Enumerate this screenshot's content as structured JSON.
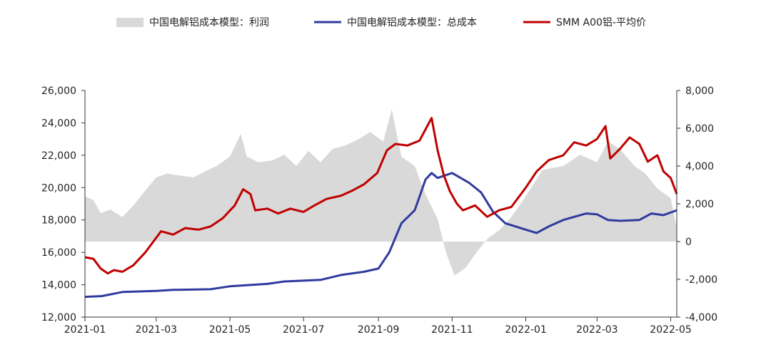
{
  "chart_data": {
    "type": "line",
    "title": "",
    "legend_placement": "top-center",
    "grid": false,
    "x_ticks": [
      "2021-01",
      "2021-03",
      "2021-05",
      "2021-07",
      "2021-09",
      "2021-11",
      "2022-01",
      "2022-03",
      "2022-05"
    ],
    "y_left": {
      "range": [
        12000,
        26000
      ],
      "ticks": [
        "12,000",
        "14,000",
        "16,000",
        "18,000",
        "20,000",
        "22,000",
        "24,000",
        "26,000"
      ]
    },
    "y_right": {
      "range": [
        -4000,
        8000
      ],
      "ticks": [
        "-4,000",
        "-2,000",
        "0",
        "2,000",
        "4,000",
        "6,000",
        "8,000"
      ]
    },
    "series": [
      {
        "name": "中国电解铝成本模型：利润",
        "kind": "area",
        "axis": "right",
        "color": "#d9d9d9",
        "points": [
          [
            "2021-01-01",
            2400
          ],
          [
            "2021-01-08",
            2200
          ],
          [
            "2021-01-14",
            1500
          ],
          [
            "2021-01-22",
            1700
          ],
          [
            "2021-02-01",
            1300
          ],
          [
            "2021-02-10",
            1900
          ],
          [
            "2021-02-20",
            2700
          ],
          [
            "2021-03-01",
            3400
          ],
          [
            "2021-03-10",
            3600
          ],
          [
            "2021-03-20",
            3500
          ],
          [
            "2021-04-01",
            3400
          ],
          [
            "2021-04-10",
            3700
          ],
          [
            "2021-04-20",
            4000
          ],
          [
            "2021-05-01",
            4500
          ],
          [
            "2021-05-10",
            5700
          ],
          [
            "2021-05-15",
            4500
          ],
          [
            "2021-05-25",
            4200
          ],
          [
            "2021-06-05",
            4300
          ],
          [
            "2021-06-15",
            4600
          ],
          [
            "2021-06-25",
            4000
          ],
          [
            "2021-07-05",
            4800
          ],
          [
            "2021-07-15",
            4200
          ],
          [
            "2021-07-25",
            4900
          ],
          [
            "2021-08-05",
            5100
          ],
          [
            "2021-08-15",
            5400
          ],
          [
            "2021-08-25",
            5800
          ],
          [
            "2021-09-05",
            5300
          ],
          [
            "2021-09-12",
            7000
          ],
          [
            "2021-09-20",
            4500
          ],
          [
            "2021-10-01",
            4000
          ],
          [
            "2021-10-10",
            2500
          ],
          [
            "2021-10-20",
            1200
          ],
          [
            "2021-10-27",
            -600
          ],
          [
            "2021-11-03",
            -1800
          ],
          [
            "2021-11-12",
            -1400
          ],
          [
            "2021-11-22",
            -500
          ],
          [
            "2021-12-01",
            200
          ],
          [
            "2021-12-10",
            600
          ],
          [
            "2021-12-20",
            1300
          ],
          [
            "2022-01-01",
            2400
          ],
          [
            "2022-01-15",
            3800
          ],
          [
            "2022-02-01",
            4000
          ],
          [
            "2022-02-15",
            4600
          ],
          [
            "2022-03-01",
            4200
          ],
          [
            "2022-03-10",
            5300
          ],
          [
            "2022-03-20",
            4900
          ],
          [
            "2022-04-01",
            4000
          ],
          [
            "2022-04-10",
            3600
          ],
          [
            "2022-04-20",
            2800
          ],
          [
            "2022-05-01",
            2300
          ],
          [
            "2022-05-06",
            700
          ]
        ]
      },
      {
        "name": "中国电解铝成本模型：总成本",
        "kind": "line",
        "axis": "left",
        "color": "#2f3a9e",
        "points": [
          [
            "2021-01-01",
            13250
          ],
          [
            "2021-01-15",
            13300
          ],
          [
            "2021-02-01",
            13550
          ],
          [
            "2021-03-01",
            13620
          ],
          [
            "2021-03-15",
            13680
          ],
          [
            "2021-04-15",
            13720
          ],
          [
            "2021-05-01",
            13900
          ],
          [
            "2021-06-01",
            14050
          ],
          [
            "2021-06-15",
            14200
          ],
          [
            "2021-07-15",
            14300
          ],
          [
            "2021-08-01",
            14600
          ],
          [
            "2021-08-20",
            14800
          ],
          [
            "2021-09-01",
            15000
          ],
          [
            "2021-09-10",
            16000
          ],
          [
            "2021-09-20",
            17800
          ],
          [
            "2021-10-01",
            18600
          ],
          [
            "2021-10-10",
            20500
          ],
          [
            "2021-10-15",
            20900
          ],
          [
            "2021-10-20",
            20600
          ],
          [
            "2021-11-01",
            20900
          ],
          [
            "2021-11-15",
            20300
          ],
          [
            "2021-11-25",
            19700
          ],
          [
            "2021-12-05",
            18500
          ],
          [
            "2021-12-15",
            17800
          ],
          [
            "2022-01-01",
            17400
          ],
          [
            "2022-01-10",
            17200
          ],
          [
            "2022-01-20",
            17600
          ],
          [
            "2022-02-01",
            18000
          ],
          [
            "2022-02-20",
            18400
          ],
          [
            "2022-03-01",
            18350
          ],
          [
            "2022-03-10",
            18000
          ],
          [
            "2022-03-20",
            17950
          ],
          [
            "2022-04-05",
            18000
          ],
          [
            "2022-04-15",
            18400
          ],
          [
            "2022-04-25",
            18300
          ],
          [
            "2022-05-06",
            18600
          ]
        ]
      },
      {
        "name": "SMM A00铝-平均价",
        "kind": "line",
        "axis": "left",
        "color": "#c00000",
        "points": [
          [
            "2021-01-01",
            15700
          ],
          [
            "2021-01-08",
            15600
          ],
          [
            "2021-01-14",
            15000
          ],
          [
            "2021-01-20",
            14700
          ],
          [
            "2021-01-25",
            14900
          ],
          [
            "2021-02-01",
            14800
          ],
          [
            "2021-02-10",
            15200
          ],
          [
            "2021-02-20",
            16000
          ],
          [
            "2021-02-28",
            16800
          ],
          [
            "2021-03-05",
            17300
          ],
          [
            "2021-03-15",
            17100
          ],
          [
            "2021-03-25",
            17500
          ],
          [
            "2021-04-05",
            17400
          ],
          [
            "2021-04-15",
            17600
          ],
          [
            "2021-04-25",
            18100
          ],
          [
            "2021-05-05",
            18900
          ],
          [
            "2021-05-12",
            19900
          ],
          [
            "2021-05-18",
            19600
          ],
          [
            "2021-05-22",
            18600
          ],
          [
            "2021-06-01",
            18700
          ],
          [
            "2021-06-10",
            18400
          ],
          [
            "2021-06-20",
            18700
          ],
          [
            "2021-07-01",
            18500
          ],
          [
            "2021-07-10",
            18900
          ],
          [
            "2021-07-20",
            19300
          ],
          [
            "2021-08-01",
            19500
          ],
          [
            "2021-08-10",
            19800
          ],
          [
            "2021-08-20",
            20200
          ],
          [
            "2021-08-31",
            20900
          ],
          [
            "2021-09-08",
            22300
          ],
          [
            "2021-09-15",
            22700
          ],
          [
            "2021-09-25",
            22600
          ],
          [
            "2021-10-05",
            22900
          ],
          [
            "2021-10-10",
            23600
          ],
          [
            "2021-10-15",
            24300
          ],
          [
            "2021-10-20",
            22300
          ],
          [
            "2021-10-25",
            20800
          ],
          [
            "2021-10-30",
            19800
          ],
          [
            "2021-11-05",
            19000
          ],
          [
            "2021-11-10",
            18600
          ],
          [
            "2021-11-20",
            18900
          ],
          [
            "2021-11-30",
            18200
          ],
          [
            "2021-12-10",
            18600
          ],
          [
            "2021-12-20",
            18800
          ],
          [
            "2022-01-01",
            20000
          ],
          [
            "2022-01-10",
            21000
          ],
          [
            "2022-01-20",
            21700
          ],
          [
            "2022-02-01",
            22000
          ],
          [
            "2022-02-10",
            22800
          ],
          [
            "2022-02-20",
            22600
          ],
          [
            "2022-03-01",
            23000
          ],
          [
            "2022-03-08",
            23800
          ],
          [
            "2022-03-12",
            21800
          ],
          [
            "2022-03-20",
            22400
          ],
          [
            "2022-03-28",
            23100
          ],
          [
            "2022-04-05",
            22700
          ],
          [
            "2022-04-12",
            21600
          ],
          [
            "2022-04-20",
            22000
          ],
          [
            "2022-04-25",
            21000
          ],
          [
            "2022-05-01",
            20600
          ],
          [
            "2022-05-06",
            19600
          ]
        ]
      }
    ]
  }
}
